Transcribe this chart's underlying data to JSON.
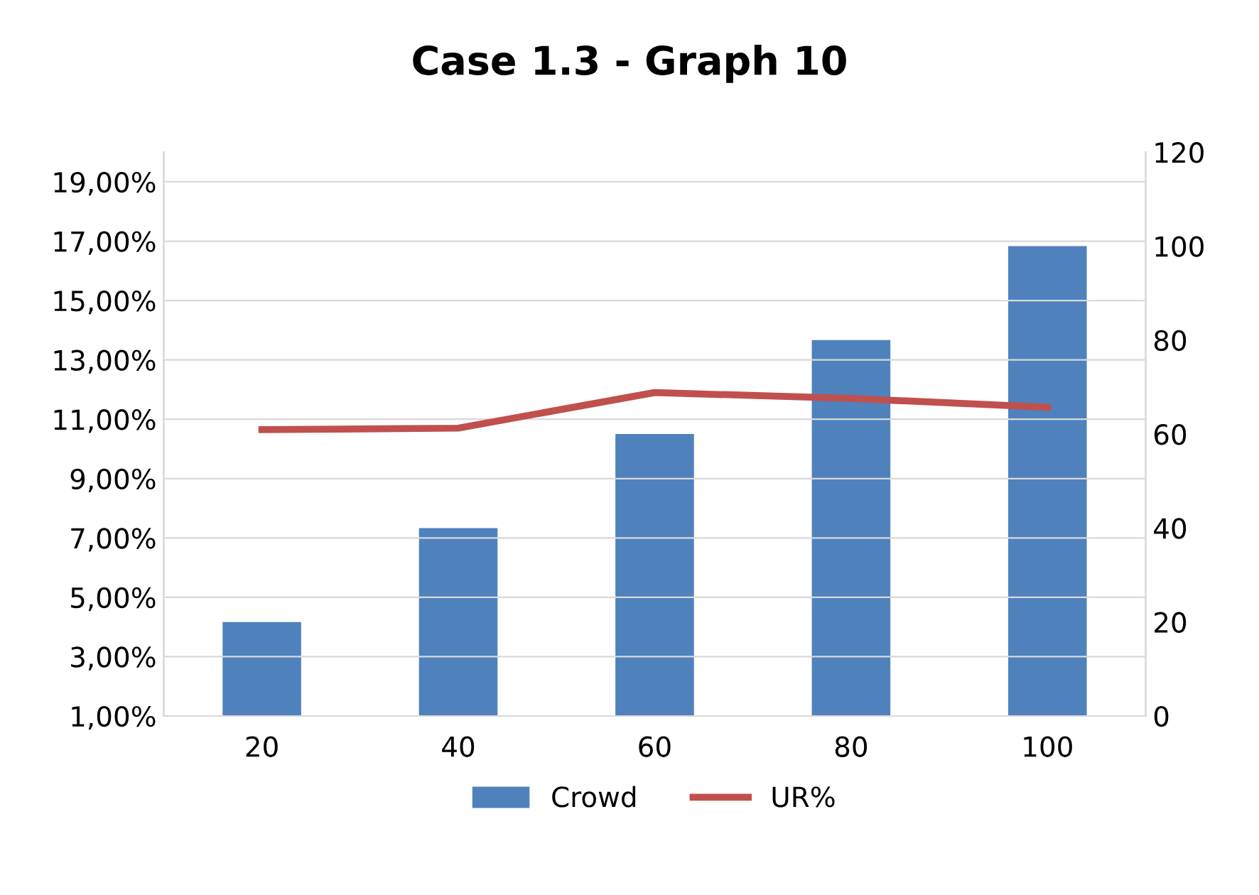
{
  "chart_data": {
    "type": "bar",
    "title": "Case 1.3 - Graph 10",
    "categories": [
      "20",
      "40",
      "60",
      "80",
      "100"
    ],
    "series": [
      {
        "name": "Crowd",
        "axis": "y2",
        "color": "#4f81bd",
        "values": [
          20,
          40,
          60,
          80,
          100
        ]
      },
      {
        "name": "UR%",
        "type": "line",
        "axis": "y",
        "color": "#c0504d",
        "values": [
          10.65,
          10.7,
          11.9,
          11.7,
          11.4
        ]
      }
    ],
    "ylim": [
      1,
      20
    ],
    "yticks": [
      {
        "value": 1,
        "label": "1,00%"
      },
      {
        "value": 3,
        "label": "3,00%"
      },
      {
        "value": 5,
        "label": "5,00%"
      },
      {
        "value": 7,
        "label": "7,00%"
      },
      {
        "value": 9,
        "label": "9,00%"
      },
      {
        "value": 11,
        "label": "11,00%"
      },
      {
        "value": 13,
        "label": "13,00%"
      },
      {
        "value": 15,
        "label": "15,00%"
      },
      {
        "value": 17,
        "label": "17,00%"
      },
      {
        "value": 19,
        "label": "19,00%"
      }
    ],
    "y2lim": [
      0,
      120
    ],
    "y2ticks": [
      0,
      20,
      40,
      60,
      80,
      100,
      120
    ],
    "grid": "y",
    "legend": "bottom",
    "marker": "none",
    "line_style": "solid"
  }
}
